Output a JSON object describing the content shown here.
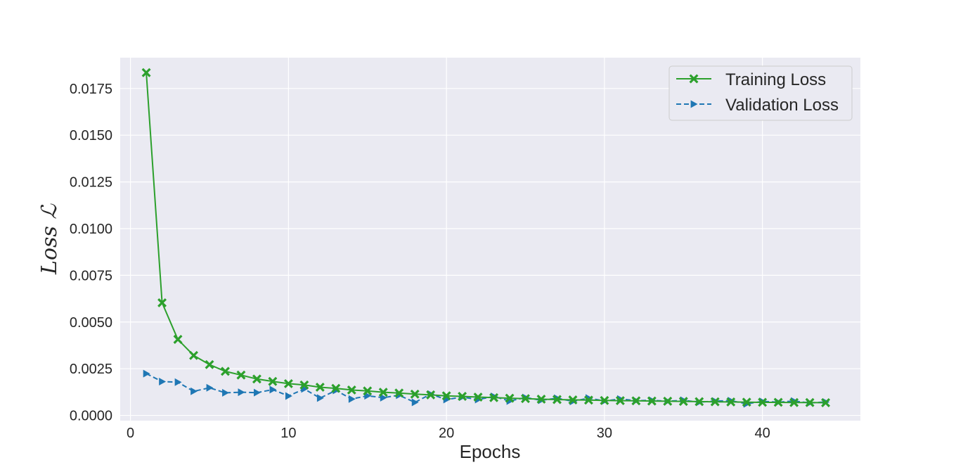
{
  "chart_data": {
    "type": "line",
    "xlabel": "Epochs",
    "ylabel": "Loss ℒ",
    "xlim": [
      -0.65,
      46.2
    ],
    "ylim": [
      -0.00028,
      0.01915
    ],
    "xticks": [
      0,
      10,
      20,
      30,
      40
    ],
    "yticks": [
      0.0,
      0.0025,
      0.005,
      0.0075,
      0.01,
      0.0125,
      0.015,
      0.0175
    ],
    "ytick_labels": [
      "0.0000",
      "0.0025",
      "0.0050",
      "0.0075",
      "0.0100",
      "0.0125",
      "0.0150",
      "0.0175"
    ],
    "grid": true,
    "legend_position": "top-right",
    "x": [
      1,
      2,
      3,
      4,
      5,
      6,
      7,
      8,
      9,
      10,
      11,
      12,
      13,
      14,
      15,
      16,
      17,
      18,
      19,
      20,
      21,
      22,
      23,
      24,
      25,
      26,
      27,
      28,
      29,
      30,
      31,
      32,
      33,
      34,
      35,
      36,
      37,
      38,
      39,
      40,
      41,
      42,
      43,
      44
    ],
    "series": [
      {
        "name": "Training Loss",
        "color": "#2ca02c",
        "marker": "x-filled",
        "linestyle": "solid",
        "values": [
          0.01835,
          0.00603,
          0.00407,
          0.00321,
          0.00272,
          0.00236,
          0.00216,
          0.00195,
          0.00182,
          0.0017,
          0.00163,
          0.00151,
          0.00145,
          0.00136,
          0.00131,
          0.00124,
          0.0012,
          0.00114,
          0.0011,
          0.00105,
          0.00102,
          0.00098,
          0.00095,
          0.00092,
          0.0009,
          0.00087,
          0.00085,
          0.00083,
          0.00082,
          0.0008,
          0.00079,
          0.00078,
          0.00077,
          0.00076,
          0.00075,
          0.00074,
          0.00073,
          0.00072,
          0.00071,
          0.0007,
          0.0007,
          0.00069,
          0.00069,
          0.00068
        ]
      },
      {
        "name": "Validation Loss",
        "color": "#1f77b4",
        "marker": "triangle-right",
        "linestyle": "dashed",
        "values": [
          0.00224,
          0.00181,
          0.00178,
          0.00129,
          0.00148,
          0.00121,
          0.00124,
          0.00122,
          0.00138,
          0.00104,
          0.00142,
          0.00093,
          0.00134,
          0.00088,
          0.00105,
          0.00095,
          0.00108,
          0.0007,
          0.00114,
          0.00085,
          0.00098,
          0.00085,
          0.00102,
          0.00077,
          0.00096,
          0.00081,
          0.00092,
          0.00075,
          0.00093,
          0.00077,
          0.00088,
          0.00079,
          0.00081,
          0.00076,
          0.00081,
          0.00071,
          0.00077,
          0.00079,
          0.00062,
          0.00075,
          0.00071,
          0.00077,
          0.00067,
          0.00072
        ]
      }
    ]
  }
}
